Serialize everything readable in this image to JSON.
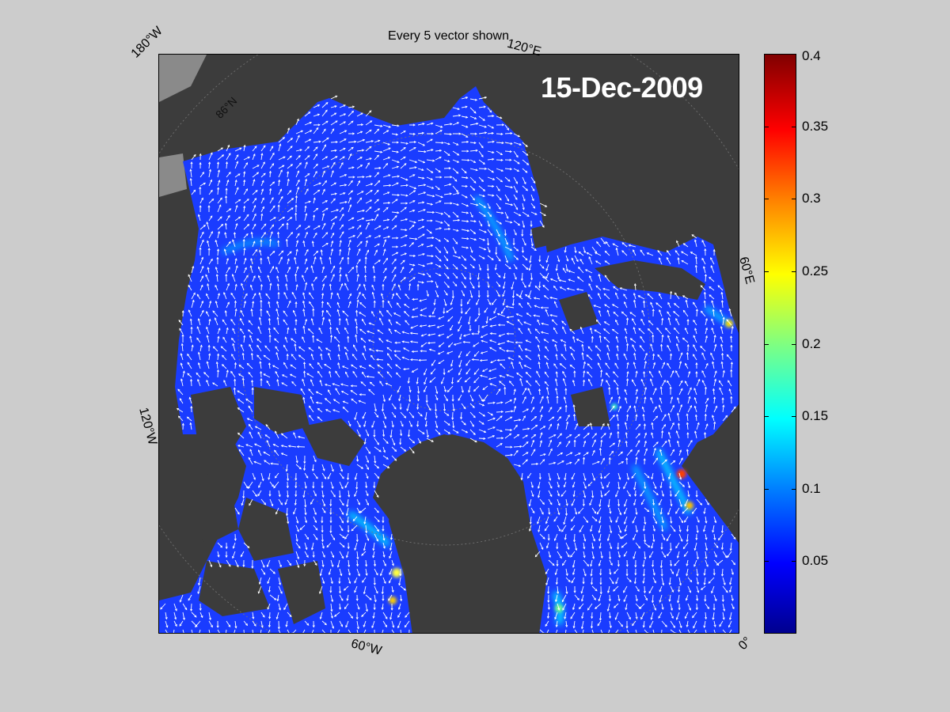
{
  "title": "Every 5 vector shown",
  "date_stamp": "15-Dec-2009",
  "longitude_labels": {
    "top_left": "180°W",
    "top_right": "120°E",
    "right": "60°E",
    "left": "120°W",
    "bottom": "60°W",
    "bottom_right": "0°"
  },
  "latitude_label": "86°N",
  "colorbar": {
    "min": 0,
    "max": 0.4,
    "ticks": [
      "0.4",
      "0.35",
      "0.3",
      "0.25",
      "0.2",
      "0.15",
      "0.1",
      "0.05"
    ],
    "tick_values": [
      0.4,
      0.35,
      0.3,
      0.25,
      0.2,
      0.15,
      0.1,
      0.05
    ],
    "colormap": "jet"
  },
  "colors": {
    "background": "#cccccc",
    "land": "#3c3c3c",
    "ocean_low": "#1a3cff",
    "vectors": "#ffffff"
  }
}
